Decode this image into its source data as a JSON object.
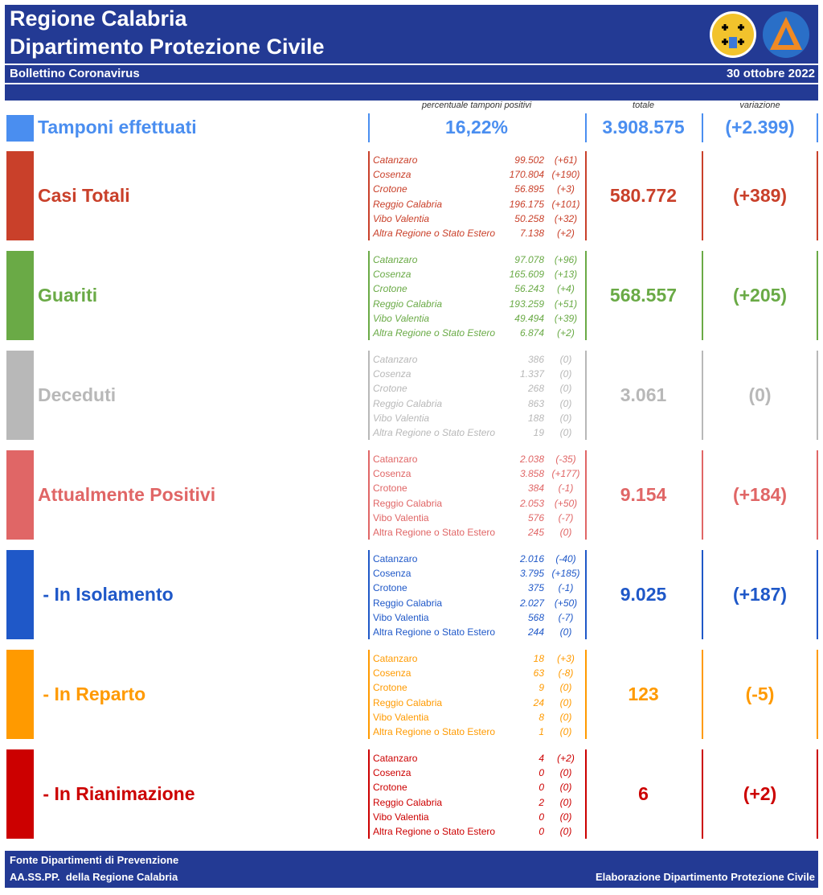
{
  "header": {
    "title": "Regione Calabria",
    "subtitle": "Dipartimento Protezione Civile",
    "bulletin": "Bollettino Coronavirus",
    "date": "30 ottobre 2022"
  },
  "columns": {
    "percent": "percentuale tamponi positivi",
    "total": "totale",
    "change": "variazione"
  },
  "tamponi": {
    "label": "Tamponi effettuati",
    "color": "#4a8ef0",
    "percent": "16,22%",
    "total": "3.908.575",
    "change": "(+2.399)"
  },
  "sections": [
    {
      "label": "Casi Totali",
      "color": "#c9402a",
      "italic_names": true,
      "total": "580.772",
      "change": "(+389)",
      "rows": [
        [
          "Catanzaro",
          "99.502",
          "(+61)"
        ],
        [
          "Cosenza",
          "170.804",
          "(+190)"
        ],
        [
          "Crotone",
          "56.895",
          "(+3)"
        ],
        [
          "Reggio Calabria",
          "196.175",
          "(+101)"
        ],
        [
          "Vibo Valentia",
          "50.258",
          "(+32)"
        ],
        [
          "Altra Regione o Stato Estero",
          "7.138",
          "(+2)"
        ]
      ]
    },
    {
      "label": "Guariti",
      "color": "#6aaa46",
      "italic_names": true,
      "total": "568.557",
      "change": "(+205)",
      "rows": [
        [
          "Catanzaro",
          "97.078",
          "(+96)"
        ],
        [
          "Cosenza",
          "165.609",
          "(+13)"
        ],
        [
          "Crotone",
          "56.243",
          "(+4)"
        ],
        [
          "Reggio Calabria",
          "193.259",
          "(+51)"
        ],
        [
          "Vibo Valentia",
          "49.494",
          "(+39)"
        ],
        [
          "Altra Regione o Stato Estero",
          "6.874",
          "(+2)"
        ]
      ]
    },
    {
      "label": "Deceduti",
      "color": "#b8b8b8",
      "italic_names": true,
      "total": "3.061",
      "change": "(0)",
      "rows": [
        [
          "Catanzaro",
          "386",
          "(0)"
        ],
        [
          "Cosenza",
          "1.337",
          "(0)"
        ],
        [
          "Crotone",
          "268",
          "(0)"
        ],
        [
          "Reggio Calabria",
          "863",
          "(0)"
        ],
        [
          "Vibo Valentia",
          "188",
          "(0)"
        ],
        [
          "Altra Regione o Stato Estero",
          "19",
          "(0)"
        ]
      ]
    },
    {
      "label": "Attualmente Positivi",
      "color": "#e06666",
      "italic_names": false,
      "total": "9.154",
      "change": "(+184)",
      "rows": [
        [
          "Catanzaro",
          "2.038",
          "(-35)"
        ],
        [
          "Cosenza",
          "3.858",
          "(+177)"
        ],
        [
          "Crotone",
          "384",
          "(-1)"
        ],
        [
          "Reggio Calabria",
          "2.053",
          "(+50)"
        ],
        [
          "Vibo Valentia",
          "576",
          "(-7)"
        ],
        [
          "Altra Regione o Stato Estero",
          "245",
          "(0)"
        ]
      ]
    },
    {
      "label": " - In Isolamento",
      "color": "#1f58c8",
      "italic_names": false,
      "total": "9.025",
      "change": "(+187)",
      "rows": [
        [
          "Catanzaro",
          "2.016",
          "(-40)"
        ],
        [
          "Cosenza",
          "3.795",
          "(+185)"
        ],
        [
          "Crotone",
          "375",
          "(-1)"
        ],
        [
          "Reggio Calabria",
          "2.027",
          "(+50)"
        ],
        [
          "Vibo Valentia",
          "568",
          "(-7)"
        ],
        [
          "Altra Regione o Stato Estero",
          "244",
          "(0)"
        ]
      ]
    },
    {
      "label": " - In Reparto",
      "color": "#ff9a00",
      "italic_names": false,
      "total": "123",
      "change": "(-5)",
      "rows": [
        [
          "Catanzaro",
          "18",
          "(+3)"
        ],
        [
          "Cosenza",
          "63",
          "(-8)"
        ],
        [
          "Crotone",
          "9",
          "(0)"
        ],
        [
          "Reggio Calabria",
          "24",
          "(0)"
        ],
        [
          "Vibo Valentia",
          "8",
          "(0)"
        ],
        [
          "Altra Regione o Stato Estero",
          "1",
          "(0)"
        ]
      ]
    },
    {
      "label": " - In Rianimazione",
      "color": "#cc0000",
      "italic_names": false,
      "total": "6",
      "change": "(+2)",
      "rows": [
        [
          "Catanzaro",
          "4",
          "(+2)"
        ],
        [
          "Cosenza",
          "0",
          "(0)"
        ],
        [
          "Crotone",
          "0",
          "(0)"
        ],
        [
          "Reggio Calabria",
          "2",
          "(0)"
        ],
        [
          "Vibo Valentia",
          "0",
          "(0)"
        ],
        [
          "Altra Regione o Stato Estero",
          "0",
          "(0)"
        ]
      ]
    }
  ],
  "footer": {
    "source1": "Fonte Dipartimenti di Prevenzione",
    "source2": "AA.SS.PP.  della Regione Calabria",
    "credit": "Elaborazione Dipartimento Protezione Civile"
  }
}
